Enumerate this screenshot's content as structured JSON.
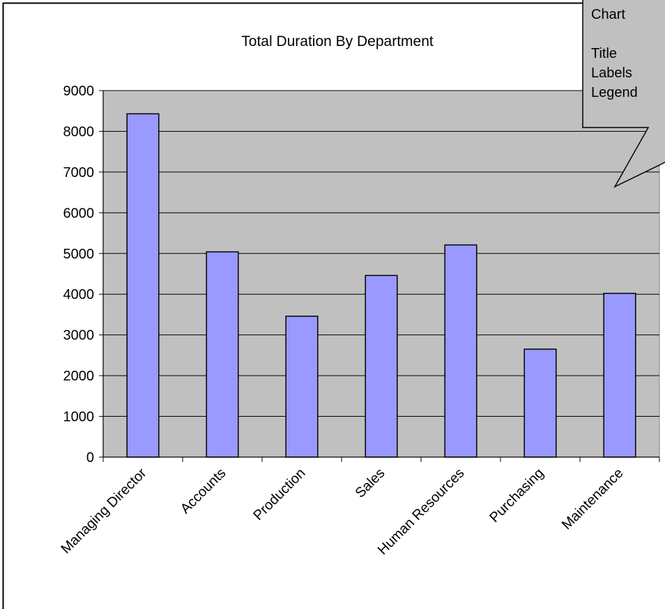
{
  "chart_data": {
    "type": "bar",
    "title": "Total Duration By Department",
    "xlabel": "",
    "ylabel": "",
    "categories": [
      "Managing Director",
      "Accounts",
      "Production",
      "Sales",
      "Human Resources",
      "Purchasing",
      "Maintenance"
    ],
    "values": [
      8430,
      5040,
      3460,
      4460,
      5210,
      2650,
      4020
    ],
    "ylim": [
      0,
      9000
    ],
    "yticks": [
      "0",
      "1000",
      "2000",
      "3000",
      "4000",
      "5000",
      "6000",
      "7000",
      "8000",
      "9000"
    ],
    "grid": true,
    "legend": "none",
    "colors": {
      "bar_fill": "#9999ff",
      "plot_background": "#c0c0c0",
      "callout_fill": "#c0c0c0"
    }
  },
  "callout": {
    "lines": [
      "Chart",
      "",
      "Title",
      "Labels",
      "Legend"
    ]
  }
}
